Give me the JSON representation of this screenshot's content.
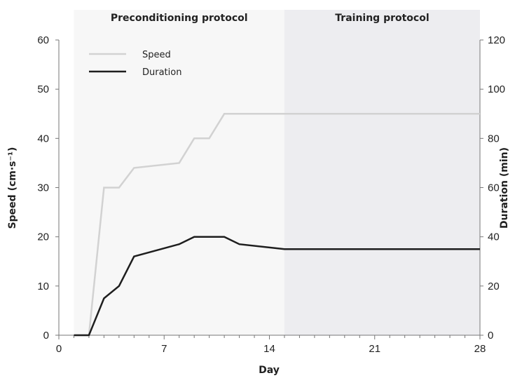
{
  "chart_data": {
    "type": "line",
    "xlabel": "Day",
    "ylabel_left": "Speed (cm·s⁻¹)",
    "ylabel_right": "Duration (min)",
    "xlim": [
      0,
      28
    ],
    "ylim_left": [
      0,
      60
    ],
    "ylim_right": [
      0,
      120
    ],
    "x_ticks": [
      0,
      7,
      14,
      21,
      28
    ],
    "x_tick_labels": [
      "0",
      "7",
      "14",
      "21",
      "28"
    ],
    "y_left_ticks": [
      0,
      10,
      20,
      30,
      40,
      50,
      60
    ],
    "y_left_tick_labels": [
      "0",
      "10",
      "20",
      "30",
      "40",
      "50",
      "60"
    ],
    "y_right_ticks": [
      0,
      20,
      40,
      60,
      80,
      100,
      120
    ],
    "y_right_tick_labels": [
      "0",
      "20",
      "40",
      "60",
      "80",
      "100",
      "120"
    ],
    "regions": [
      {
        "label": "Preconditioning protocol",
        "x_start": 1,
        "x_end": 15,
        "color": "#f7f7f7"
      },
      {
        "label": "Training protocol",
        "x_start": 15,
        "x_end": 28,
        "color": "#ededf0"
      }
    ],
    "series": [
      {
        "name": "Speed",
        "axis": "left",
        "color": "#d2d2d2",
        "x": [
          1,
          2,
          3,
          4,
          5,
          8,
          9,
          10,
          11,
          12,
          15,
          28
        ],
        "y": [
          0,
          0,
          30,
          30,
          34,
          35,
          40,
          40,
          45,
          45,
          45,
          45
        ]
      },
      {
        "name": "Duration",
        "axis": "right",
        "color": "#1e1e1e",
        "x": [
          1,
          2,
          3,
          4,
          5,
          8,
          9,
          10,
          11,
          12,
          15,
          28
        ],
        "y": [
          0,
          0,
          15,
          20,
          32,
          37,
          40,
          40,
          40,
          37,
          35,
          35
        ]
      }
    ],
    "legend_position": "top-left",
    "grid": false
  }
}
